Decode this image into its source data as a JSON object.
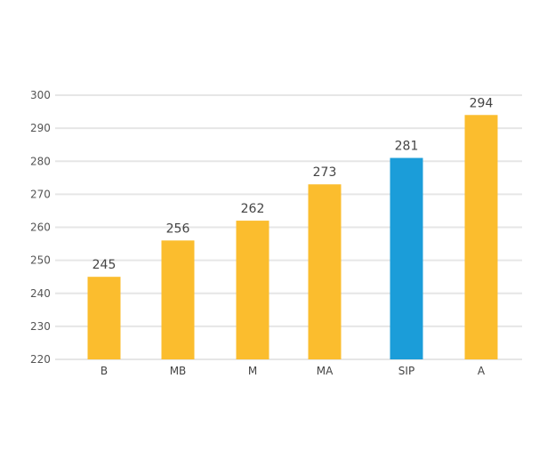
{
  "chart_data": {
    "type": "bar",
    "categories": [
      "B",
      "MB",
      "M",
      "MA",
      "SIP",
      "A"
    ],
    "values": [
      245,
      256,
      262,
      273,
      281,
      294
    ],
    "data_labels": [
      "245",
      "256",
      "262",
      "273",
      "281",
      "294"
    ],
    "highlight_index": 4,
    "ylim": [
      220,
      300
    ],
    "yticks": [
      220,
      230,
      240,
      250,
      260,
      270,
      280,
      290,
      300
    ],
    "ytick_labels": [
      "220",
      "230",
      "240",
      "250",
      "260",
      "270",
      "280",
      "290",
      "300"
    ],
    "grid": true,
    "title": "",
    "xlabel": "",
    "ylabel": "",
    "colors": {
      "bar": "#FBBD2E",
      "highlight": "#1B9DD9",
      "grid": "#E6E6E6",
      "text": "#444444"
    }
  }
}
